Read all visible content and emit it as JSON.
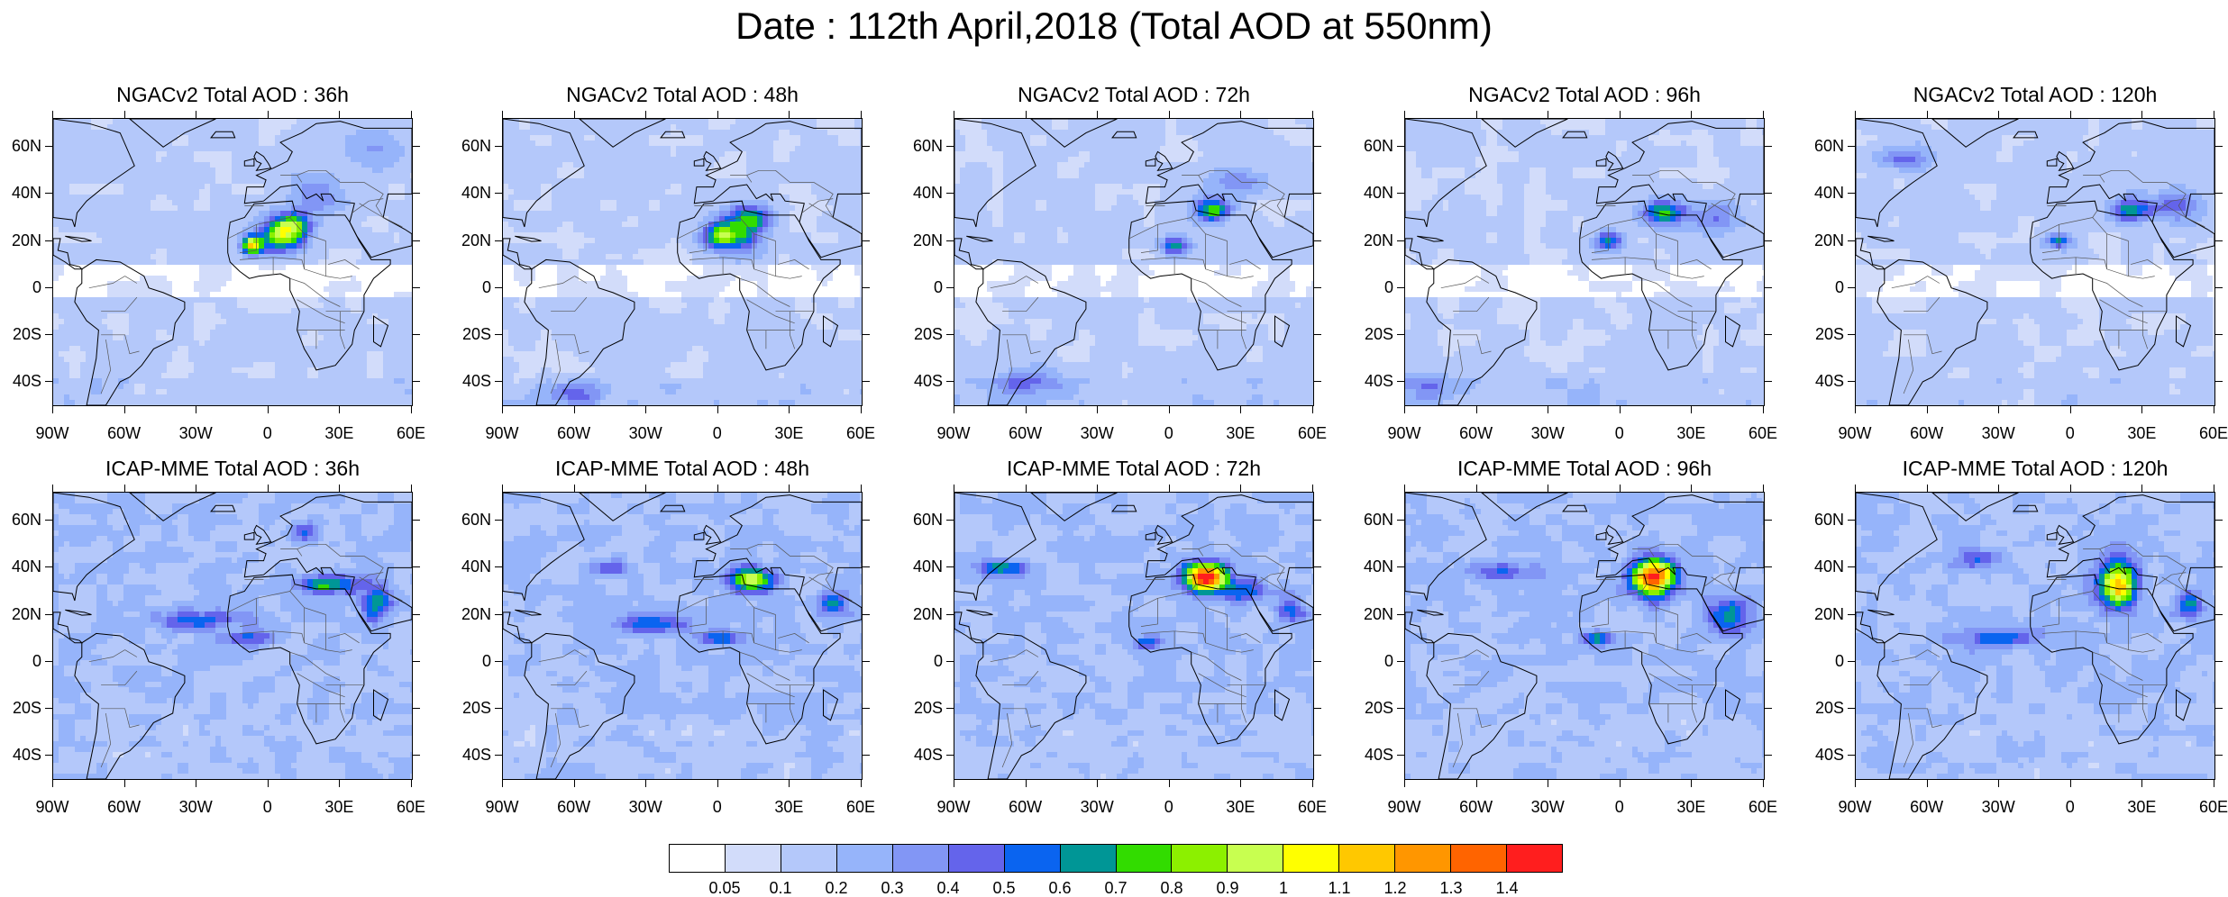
{
  "title": "Date : 112th April,2018 (Total AOD at 550nm)",
  "lat_labels": [
    "60N",
    "40N",
    "20N",
    "0",
    "20S",
    "40S"
  ],
  "lat_values": [
    60,
    40,
    20,
    0,
    -20,
    -40
  ],
  "lon_labels": [
    "90W",
    "60W",
    "30W",
    "0",
    "30E",
    "60E"
  ],
  "lon_values": [
    -90,
    -60,
    -30,
    0,
    30,
    60
  ],
  "map_extent": {
    "lon": [
      -90,
      60
    ],
    "lat": [
      -50,
      72
    ]
  },
  "rows": [
    {
      "model": "NGACv2",
      "panels": [
        {
          "title": "NGACv2 Total AOD : 36h",
          "lead_hours": 36
        },
        {
          "title": "NGACv2 Total AOD : 48h",
          "lead_hours": 48
        },
        {
          "title": "NGACv2 Total AOD : 72h",
          "lead_hours": 72
        },
        {
          "title": "NGACv2 Total AOD : 96h",
          "lead_hours": 96
        },
        {
          "title": "NGACv2 Total AOD : 120h",
          "lead_hours": 120
        }
      ]
    },
    {
      "model": "ICAP-MME",
      "panels": [
        {
          "title": "ICAP-MME Total AOD : 36h",
          "lead_hours": 36
        },
        {
          "title": "ICAP-MME Total AOD : 48h",
          "lead_hours": 48
        },
        {
          "title": "ICAP-MME Total AOD : 72h",
          "lead_hours": 72
        },
        {
          "title": "ICAP-MME Total AOD : 96h",
          "lead_hours": 96
        },
        {
          "title": "ICAP-MME Total AOD : 120h",
          "lead_hours": 120
        }
      ]
    }
  ],
  "colorbar": {
    "labels": [
      "0.05",
      "0.1",
      "0.2",
      "0.3",
      "0.4",
      "0.5",
      "0.6",
      "0.7",
      "0.8",
      "0.9",
      "1",
      "1.1",
      "1.2",
      "1.3",
      "1.4"
    ],
    "colors": [
      "#ffffff",
      "#d2dcfa",
      "#b4c8fa",
      "#96b4fa",
      "#8296f5",
      "#6464eb",
      "#0a64f0",
      "#009696",
      "#32dc00",
      "#8cf000",
      "#c8ff50",
      "#ffff00",
      "#ffc800",
      "#ff9600",
      "#ff6400",
      "#ff1e1e"
    ]
  },
  "map_colors": {
    "background": "#ffffff",
    "land_outline": "#000000",
    "border_outline": "#555555"
  }
}
